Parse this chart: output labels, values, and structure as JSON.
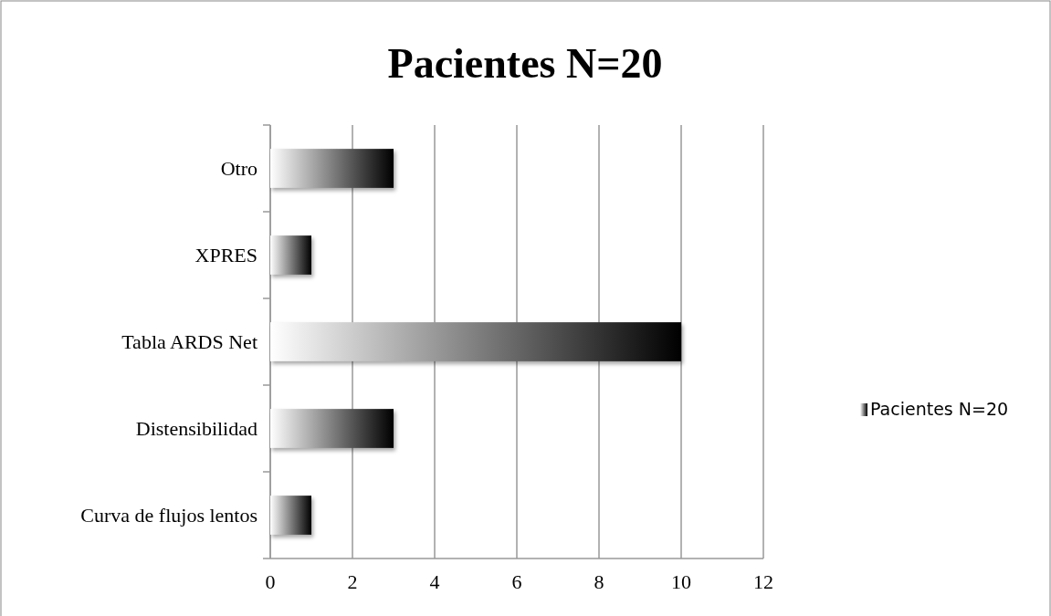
{
  "chart_data": {
    "type": "bar",
    "orientation": "horizontal",
    "title": "Pacientes N=20",
    "categories": [
      "Otro",
      "XPRES",
      "Tabla ARDS Net",
      "Distensibilidad",
      "Curva de flujos lentos"
    ],
    "series": [
      {
        "name": "Pacientes N=20",
        "color": "#000000",
        "values": [
          3,
          1,
          10,
          3,
          1
        ]
      }
    ],
    "xlim": [
      0,
      12
    ],
    "xticks": [
      0,
      2,
      4,
      6,
      8,
      10,
      12
    ],
    "grid": "x",
    "legend": "right"
  }
}
